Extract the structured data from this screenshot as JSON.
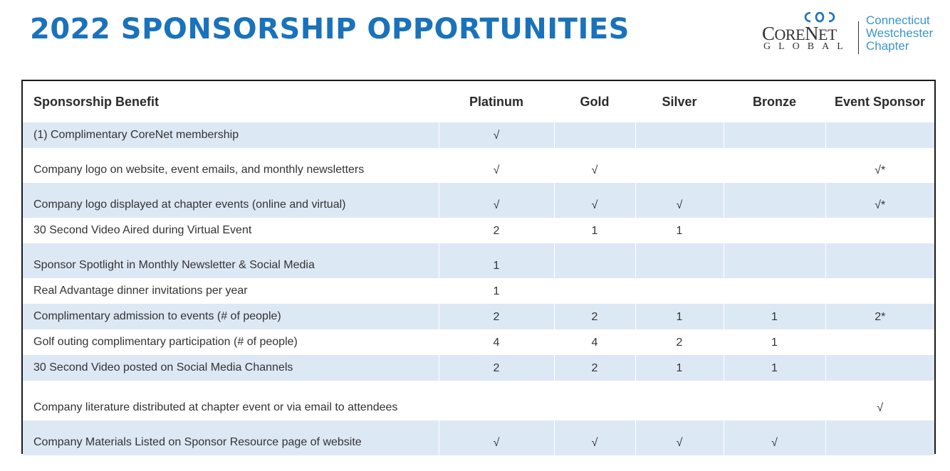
{
  "header": {
    "title": "2022 SPONSORSHIP OPPORTUNITIES"
  },
  "logo": {
    "core_text": "CORENET",
    "global_text": "GLOBAL",
    "chapter_lines": [
      "Connecticut",
      "Westchester",
      "Chapter"
    ]
  },
  "table": {
    "columns": [
      "Sponsorship Benefit",
      "Platinum",
      "Gold",
      "Silver",
      "Bronze",
      "Event Sponsor"
    ],
    "rows": [
      {
        "benefit": "(1) Complimentary CoreNet membership",
        "values": [
          "√",
          "",
          "",
          "",
          ""
        ],
        "shaded": true
      },
      {
        "benefit": "Company logo on website, event emails, and monthly newsletters",
        "values": [
          "√",
          "√",
          "",
          "",
          "√*"
        ],
        "shaded": false
      },
      {
        "benefit": "Company logo displayed at chapter events (online and virtual)",
        "values": [
          "√",
          "√",
          "√",
          "",
          "√*"
        ],
        "shaded": true
      },
      {
        "benefit": "30 Second Video Aired during Virtual Event",
        "values": [
          "2",
          "1",
          "1",
          "",
          ""
        ],
        "shaded": false
      },
      {
        "benefit": "Sponsor Spotlight in Monthly Newsletter & Social Media",
        "values": [
          "1",
          "",
          "",
          "",
          ""
        ],
        "shaded": true
      },
      {
        "benefit": "Real Advantage dinner invitations per year",
        "values": [
          "1",
          "",
          "",
          "",
          ""
        ],
        "shaded": false
      },
      {
        "benefit": "Complimentary admission to events (# of people)",
        "values": [
          "2",
          "2",
          "1",
          "1",
          "2*"
        ],
        "shaded": true
      },
      {
        "benefit": "Golf outing complimentary participation (# of people)",
        "values": [
          "4",
          "4",
          "2",
          "1",
          ""
        ],
        "shaded": false
      },
      {
        "benefit": "30 Second Video posted on Social Media Channels",
        "values": [
          "2",
          "2",
          "1",
          "1",
          ""
        ],
        "shaded": true
      },
      {
        "benefit": "Company literature distributed at chapter event or via email to attendees",
        "values": [
          "",
          "",
          "",
          "",
          "√"
        ],
        "shaded": false
      },
      {
        "benefit": "Company Materials Listed on Sponsor Resource page of website",
        "values": [
          "√",
          "√",
          "√",
          "√",
          ""
        ],
        "shaded": true
      }
    ]
  },
  "colors": {
    "title": "#1a72bb",
    "shaded_row": "#dde8f5",
    "chapter_text": "#3b95cc"
  }
}
